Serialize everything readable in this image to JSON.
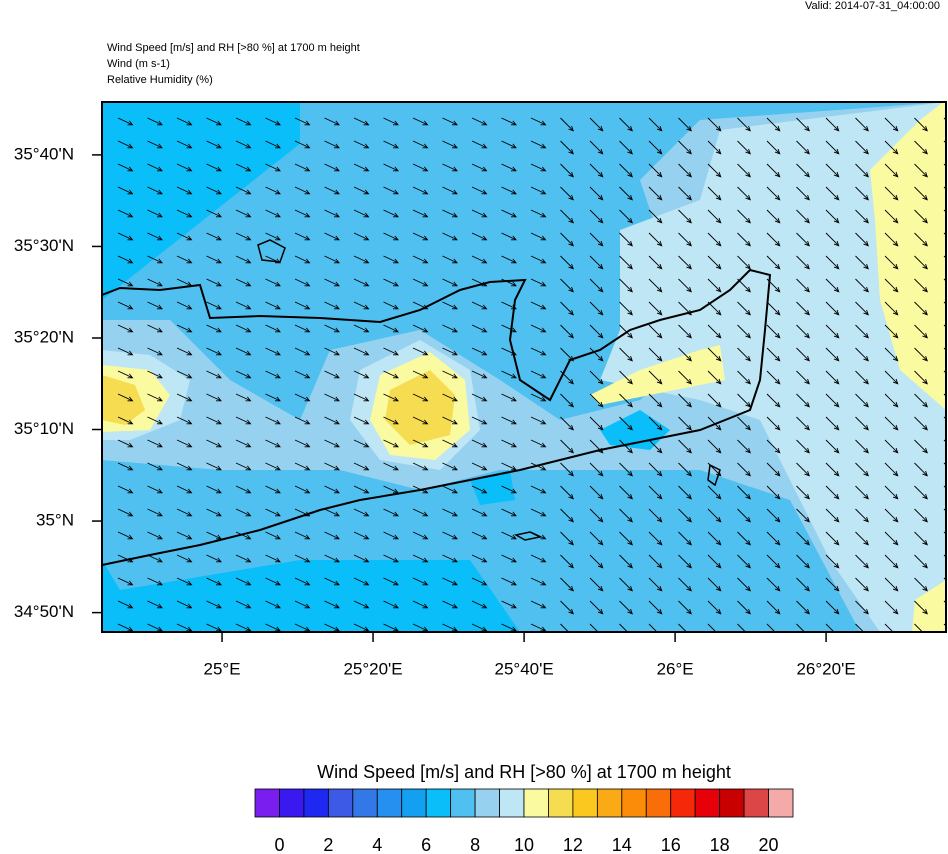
{
  "header": {
    "valid": "Valid: 2014-07-31_04:00:00",
    "title_lines": [
      "Wind Speed [m/s] and RH [>80 %] at 1700 m height",
      "Wind   (m s-1)",
      "Relative Humidity   (%)"
    ]
  },
  "map": {
    "lon_lim": [
      24.735,
      26.598
    ],
    "lat_lim": [
      34.798,
      35.763
    ],
    "lon_ticks": [
      {
        "value": 25,
        "label": "25°E"
      },
      {
        "value": 25.3333,
        "label": "25°20'E"
      },
      {
        "value": 25.6667,
        "label": "25°40'E"
      },
      {
        "value": 26,
        "label": "26°E"
      },
      {
        "value": 26.3333,
        "label": "26°20'E"
      }
    ],
    "lat_ticks": [
      {
        "value": 35.6667,
        "label": "35°40'N"
      },
      {
        "value": 35.5,
        "label": "35°30'N"
      },
      {
        "value": 35.3333,
        "label": "35°20'N"
      },
      {
        "value": 35.1667,
        "label": "35°10'N"
      },
      {
        "value": 35,
        "label": "35°N"
      },
      {
        "value": 34.8333,
        "label": "34°50'N"
      }
    ]
  },
  "colorbar": {
    "title": "Wind Speed [m/s] and RH [>80 %] at 1700 m height",
    "lim": [
      -1,
      21
    ],
    "ticks": [
      0,
      2,
      4,
      6,
      8,
      10,
      12,
      14,
      16,
      18,
      20
    ],
    "colors": [
      "#7a1ef0",
      "#3a18f0",
      "#1e28f0",
      "#3c5ae6",
      "#3278e6",
      "#2690f0",
      "#14a0f0",
      "#0abefa",
      "#50c0f0",
      "#96d2f0",
      "#bee6f5",
      "#fafaa0",
      "#f5dc50",
      "#fac81e",
      "#faaa14",
      "#fa8c0a",
      "#fa6e0a",
      "#f5280a",
      "#e6000a",
      "#c80000",
      "#dc4646",
      "#f5aaaa"
    ]
  }
}
